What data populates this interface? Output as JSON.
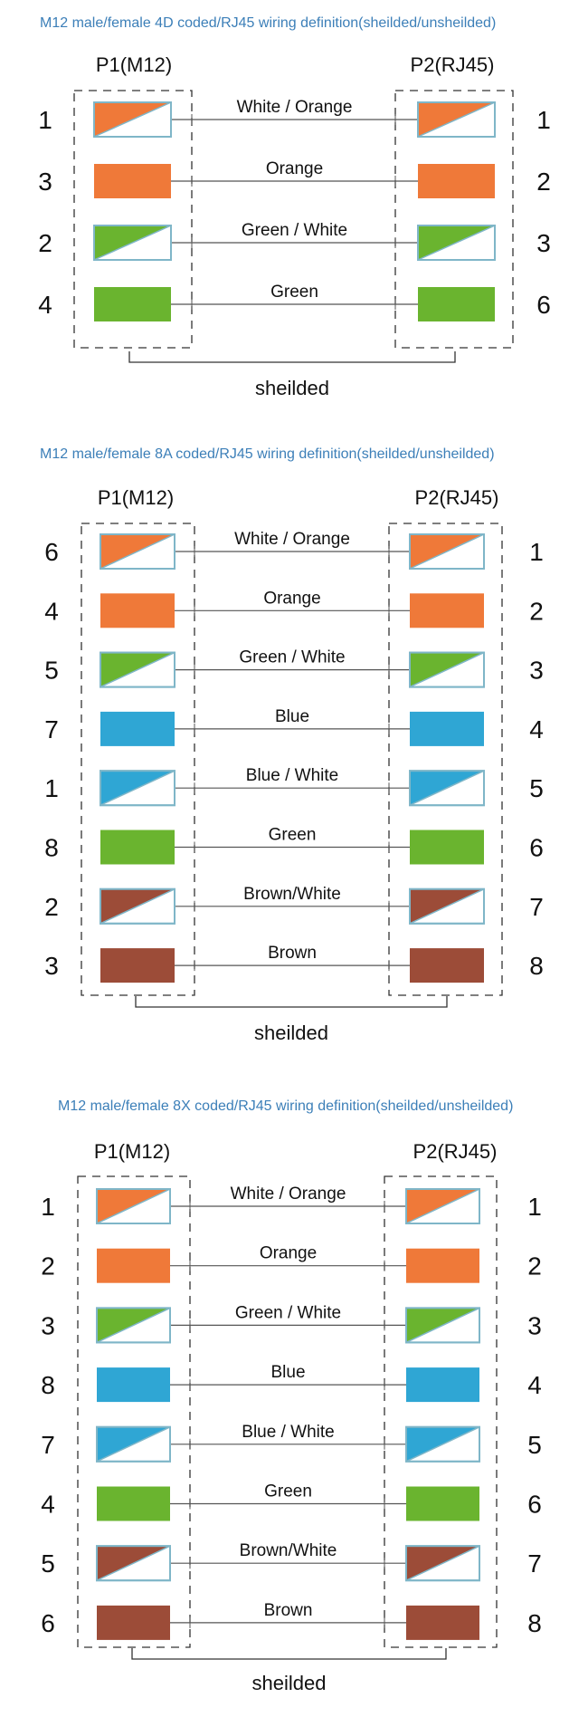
{
  "colors": {
    "orange": "#ef7939",
    "green": "#6ab42f",
    "blue": "#2fa6d4",
    "brown": "#9c4c38",
    "stripe_border": "#7fb6c8",
    "title": "#3c7fb8",
    "line": "#555555",
    "text": "#111111"
  },
  "diagrams": [
    {
      "title": "M12 male/female 4D coded/RJ45 wiring definition(sheilded/unsheilded)",
      "left_label": "P1(M12)",
      "right_label": "P2(RJ45)",
      "shield_label": "sheilded",
      "wires": [
        {
          "left_pin": "1",
          "right_pin": "1",
          "label": "White / Orange",
          "color": "orange",
          "striped": true
        },
        {
          "left_pin": "3",
          "right_pin": "2",
          "label": "Orange",
          "color": "orange",
          "striped": false
        },
        {
          "left_pin": "2",
          "right_pin": "3",
          "label": "Green / White",
          "color": "green",
          "striped": true
        },
        {
          "left_pin": "4",
          "right_pin": "6",
          "label": "Green",
          "color": "green",
          "striped": false
        }
      ]
    },
    {
      "title": "M12 male/female 8A coded/RJ45 wiring definition(sheilded/unsheilded)",
      "left_label": "P1(M12)",
      "right_label": "P2(RJ45)",
      "shield_label": "sheilded",
      "wires": [
        {
          "left_pin": "6",
          "right_pin": "1",
          "label": "White / Orange",
          "color": "orange",
          "striped": true
        },
        {
          "left_pin": "4",
          "right_pin": "2",
          "label": "Orange",
          "color": "orange",
          "striped": false
        },
        {
          "left_pin": "5",
          "right_pin": "3",
          "label": "Green / White",
          "color": "green",
          "striped": true
        },
        {
          "left_pin": "7",
          "right_pin": "4",
          "label": "Blue",
          "color": "blue",
          "striped": false
        },
        {
          "left_pin": "1",
          "right_pin": "5",
          "label": "Blue / White",
          "color": "blue",
          "striped": true
        },
        {
          "left_pin": "8",
          "right_pin": "6",
          "label": "Green",
          "color": "green",
          "striped": false
        },
        {
          "left_pin": "2",
          "right_pin": "7",
          "label": "Brown/White",
          "color": "brown",
          "striped": true
        },
        {
          "left_pin": "3",
          "right_pin": "8",
          "label": "Brown",
          "color": "brown",
          "striped": false
        }
      ]
    },
    {
      "title": "M12 male/female 8X coded/RJ45 wiring definition(sheilded/unsheilded)",
      "left_label": "P1(M12)",
      "right_label": "P2(RJ45)",
      "shield_label": "sheilded",
      "wires": [
        {
          "left_pin": "1",
          "right_pin": "1",
          "label": "White / Orange",
          "color": "orange",
          "striped": true
        },
        {
          "left_pin": "2",
          "right_pin": "2",
          "label": "Orange",
          "color": "orange",
          "striped": false
        },
        {
          "left_pin": "3",
          "right_pin": "3",
          "label": "Green / White",
          "color": "green",
          "striped": true
        },
        {
          "left_pin": "8",
          "right_pin": "4",
          "label": "Blue",
          "color": "blue",
          "striped": false
        },
        {
          "left_pin": "7",
          "right_pin": "5",
          "label": "Blue / White",
          "color": "blue",
          "striped": true
        },
        {
          "left_pin": "4",
          "right_pin": "6",
          "label": "Green",
          "color": "green",
          "striped": false
        },
        {
          "left_pin": "5",
          "right_pin": "7",
          "label": "Brown/White",
          "color": "brown",
          "striped": true
        },
        {
          "left_pin": "6",
          "right_pin": "8",
          "label": "Brown",
          "color": "brown",
          "striped": false
        }
      ]
    }
  ]
}
